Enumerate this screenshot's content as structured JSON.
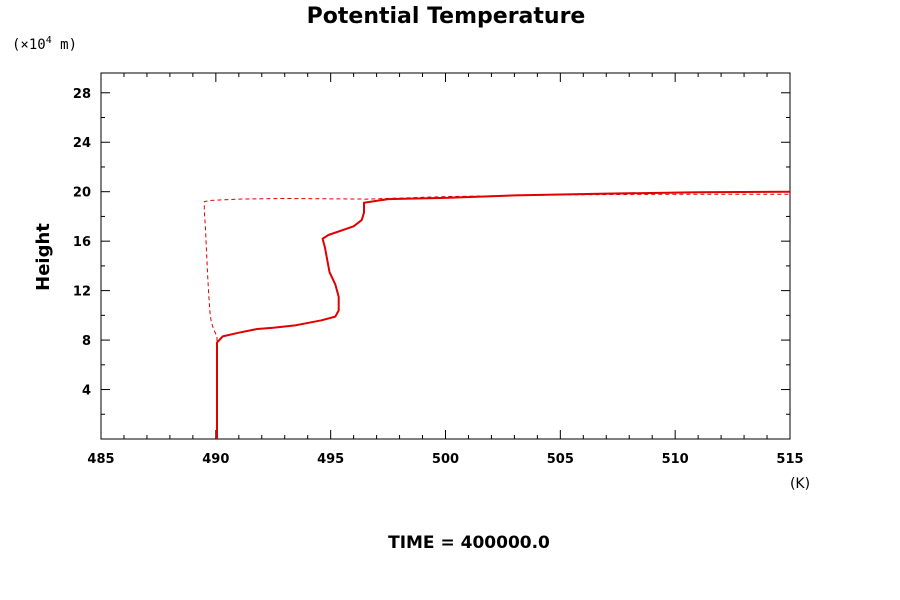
{
  "chart_data": {
    "type": "line",
    "title": "Potential Temperature",
    "xlabel": "",
    "x_unit": "(K)",
    "ylabel": "Height",
    "y_unit_prefix": "(×10",
    "y_unit_exp": "4",
    "y_unit_suffix": " m)",
    "footer": "TIME = 400000.0",
    "xlim": [
      485,
      515
    ],
    "ylim": [
      0,
      29.6
    ],
    "x_ticks": [
      485,
      490,
      495,
      500,
      505,
      510,
      515
    ],
    "x_tick_labels": [
      "485",
      "490",
      "495",
      "500",
      "505",
      "510",
      "515"
    ],
    "y_ticks": [
      4,
      8,
      12,
      16,
      20,
      24,
      28
    ],
    "y_tick_labels": [
      "4",
      "8",
      "12",
      "16",
      "20",
      "24",
      "28"
    ],
    "grid": false,
    "series": [
      {
        "style": "solid",
        "color": "#e00000",
        "points": [
          [
            490.05,
            0
          ],
          [
            490.05,
            6.0
          ],
          [
            490.05,
            7.8
          ],
          [
            490.3,
            8.3
          ],
          [
            491.0,
            8.6
          ],
          [
            491.8,
            8.9
          ],
          [
            492.5,
            9.0
          ],
          [
            493.5,
            9.2
          ],
          [
            494.6,
            9.6
          ],
          [
            495.2,
            9.9
          ],
          [
            495.35,
            10.4
          ],
          [
            495.35,
            11.5
          ],
          [
            495.2,
            12.5
          ],
          [
            494.95,
            13.5
          ],
          [
            494.85,
            14.5
          ],
          [
            494.75,
            15.5
          ],
          [
            494.65,
            16.2
          ],
          [
            494.9,
            16.5
          ],
          [
            496.0,
            17.2
          ],
          [
            496.35,
            17.7
          ],
          [
            496.45,
            18.3
          ],
          [
            496.45,
            19.1
          ],
          [
            497.5,
            19.4
          ],
          [
            500.0,
            19.5
          ],
          [
            503.0,
            19.7
          ],
          [
            507.0,
            19.85
          ],
          [
            511.0,
            19.95
          ],
          [
            515.0,
            20.0
          ]
        ]
      },
      {
        "style": "dashed",
        "color": "#e00000",
        "points": [
          [
            490.05,
            0
          ],
          [
            490.05,
            7.8
          ],
          [
            490.05,
            8.3
          ],
          [
            489.9,
            8.9
          ],
          [
            489.8,
            9.5
          ],
          [
            489.75,
            10.1
          ],
          [
            489.7,
            11.5
          ],
          [
            489.65,
            13.0
          ],
          [
            489.6,
            15.0
          ],
          [
            489.55,
            17.0
          ],
          [
            489.5,
            18.5
          ],
          [
            489.5,
            19.2
          ],
          [
            489.8,
            19.3
          ],
          [
            491.0,
            19.4
          ],
          [
            493.0,
            19.45
          ],
          [
            496.6,
            19.4
          ],
          [
            500.0,
            19.6
          ],
          [
            505.0,
            19.75
          ],
          [
            510.0,
            19.8
          ],
          [
            515.0,
            19.8
          ]
        ]
      }
    ]
  }
}
